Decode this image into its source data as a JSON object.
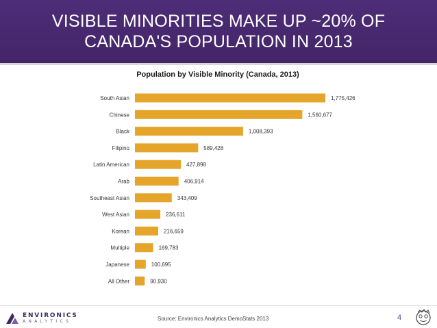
{
  "slide": {
    "title_line1": "VISIBLE MINORITIES MAKE UP ~20% OF",
    "title_line2": "CANADA'S POPULATION IN 2013",
    "page_number": "4",
    "source": "Source: Environics Analytics DemoStats 2013",
    "logo_text": "ENVIRONICS",
    "logo_subtext": "ANALYTICS",
    "colors": {
      "banner": "#4a2c72",
      "bar": "#e5a52b"
    }
  },
  "chart_data": {
    "type": "bar",
    "orientation": "horizontal",
    "title": "Population by Visible Minority (Canada, 2013)",
    "categories": [
      "South Asian",
      "Chinese",
      "Black",
      "Filipino",
      "Latin American",
      "Arab",
      "Southeast Asian",
      "West Asian",
      "Korean",
      "Multiple",
      "Japanese",
      "All Other"
    ],
    "values": [
      1775426,
      1560677,
      1008393,
      589428,
      427898,
      406914,
      343409,
      236611,
      216659,
      169783,
      100695,
      90930
    ],
    "value_labels": [
      "1,775,426",
      "1,560,677",
      "1,008,393",
      "589,428",
      "427,898",
      "406,914",
      "343,409",
      "236,611",
      "216,659",
      "169,783",
      "100,695",
      "90,930"
    ],
    "xlim": [
      0,
      2100000
    ],
    "grid": false,
    "legend": "none"
  }
}
